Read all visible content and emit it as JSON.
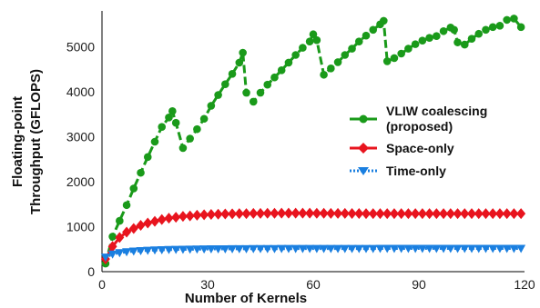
{
  "chart_data": {
    "type": "line",
    "xlabel": "Number of Kernels",
    "ylabel_lines": [
      "Floating-point",
      "Throughput (GFLOPS)"
    ],
    "xlim": [
      0,
      120
    ],
    "ylim": [
      0,
      5800
    ],
    "xticks": [
      0,
      30,
      60,
      90,
      120
    ],
    "yticks": [
      0,
      1000,
      2000,
      3000,
      4000,
      5000
    ],
    "grid": false,
    "legend_position": "right",
    "series": [
      {
        "name_lines": [
          "VLIW coalescing",
          "(proposed)"
        ],
        "color": "#1a9a1a",
        "marker": "circle",
        "line_style": "dashed",
        "x": [
          1,
          3,
          5,
          7,
          9,
          11,
          13,
          15,
          17,
          19,
          20,
          21,
          23,
          25,
          27,
          29,
          31,
          33,
          35,
          37,
          39,
          40,
          41,
          43,
          45,
          47,
          49,
          51,
          53,
          55,
          57,
          59,
          60,
          61,
          63,
          65,
          67,
          69,
          71,
          73,
          75,
          77,
          79,
          80,
          81,
          83,
          85,
          87,
          89,
          91,
          93,
          95,
          97,
          99,
          100,
          101,
          103,
          105,
          107,
          109,
          111,
          113,
          115,
          117,
          119
        ],
        "y": [
          180,
          780,
          1130,
          1480,
          1850,
          2200,
          2550,
          2890,
          3220,
          3430,
          3570,
          3310,
          2750,
          2960,
          3170,
          3400,
          3690,
          3930,
          4170,
          4400,
          4650,
          4870,
          3980,
          3780,
          3980,
          4160,
          4320,
          4480,
          4650,
          4820,
          4980,
          5120,
          5280,
          5150,
          4380,
          4520,
          4660,
          4820,
          4960,
          5120,
          5250,
          5380,
          5500,
          5580,
          4680,
          4750,
          4850,
          4960,
          5060,
          5140,
          5200,
          5240,
          5350,
          5430,
          5380,
          5100,
          5050,
          5180,
          5290,
          5380,
          5440,
          5470,
          5600,
          5630,
          5440
        ]
      },
      {
        "name_lines": [
          "Space-only"
        ],
        "color": "#e8141e",
        "marker": "diamond",
        "line_style": "solid",
        "x": [
          1,
          3,
          5,
          7,
          9,
          11,
          13,
          15,
          17,
          19,
          21,
          23,
          25,
          27,
          29,
          31,
          33,
          35,
          37,
          39,
          41,
          43,
          45,
          47,
          49,
          51,
          53,
          55,
          57,
          59,
          61,
          63,
          65,
          67,
          69,
          71,
          73,
          75,
          77,
          79,
          81,
          83,
          85,
          87,
          89,
          91,
          93,
          95,
          97,
          99,
          101,
          103,
          105,
          107,
          109,
          111,
          113,
          115,
          117,
          119
        ],
        "y": [
          280,
          560,
          760,
          880,
          960,
          1030,
          1080,
          1120,
          1160,
          1190,
          1210,
          1230,
          1240,
          1255,
          1265,
          1272,
          1278,
          1283,
          1287,
          1290,
          1292,
          1295,
          1297,
          1298,
          1299,
          1300,
          1300,
          1301,
          1301,
          1300,
          1299,
          1298,
          1297,
          1296,
          1295,
          1294,
          1293,
          1292,
          1292,
          1291,
          1291,
          1290,
          1290,
          1290,
          1290,
          1290,
          1290,
          1290,
          1290,
          1290,
          1290,
          1290,
          1290,
          1290,
          1290,
          1290,
          1290,
          1290,
          1290,
          1290
        ]
      },
      {
        "name_lines": [
          "Time-only"
        ],
        "color": "#1a7fe0",
        "marker": "triangle-down",
        "line_style": "dotted",
        "x": [
          1,
          3,
          5,
          7,
          9,
          11,
          13,
          15,
          17,
          19,
          21,
          23,
          25,
          27,
          29,
          31,
          33,
          35,
          37,
          39,
          41,
          43,
          45,
          47,
          49,
          51,
          53,
          55,
          57,
          59,
          61,
          63,
          65,
          67,
          69,
          71,
          73,
          75,
          77,
          79,
          81,
          83,
          85,
          87,
          89,
          91,
          93,
          95,
          97,
          99,
          101,
          103,
          105,
          107,
          109,
          111,
          113,
          115,
          117,
          119
        ],
        "y": [
          320,
          390,
          420,
          440,
          455,
          465,
          473,
          480,
          485,
          490,
          493,
          496,
          498,
          500,
          502,
          504,
          505,
          506,
          507,
          508,
          509,
          510,
          510,
          511,
          511,
          512,
          512,
          512,
          513,
          513,
          513,
          513,
          514,
          514,
          514,
          514,
          514,
          514,
          514,
          515,
          515,
          515,
          515,
          515,
          515,
          515,
          515,
          515,
          515,
          515,
          515,
          515,
          515,
          515,
          515,
          515,
          515,
          515,
          515,
          515
        ]
      }
    ]
  }
}
